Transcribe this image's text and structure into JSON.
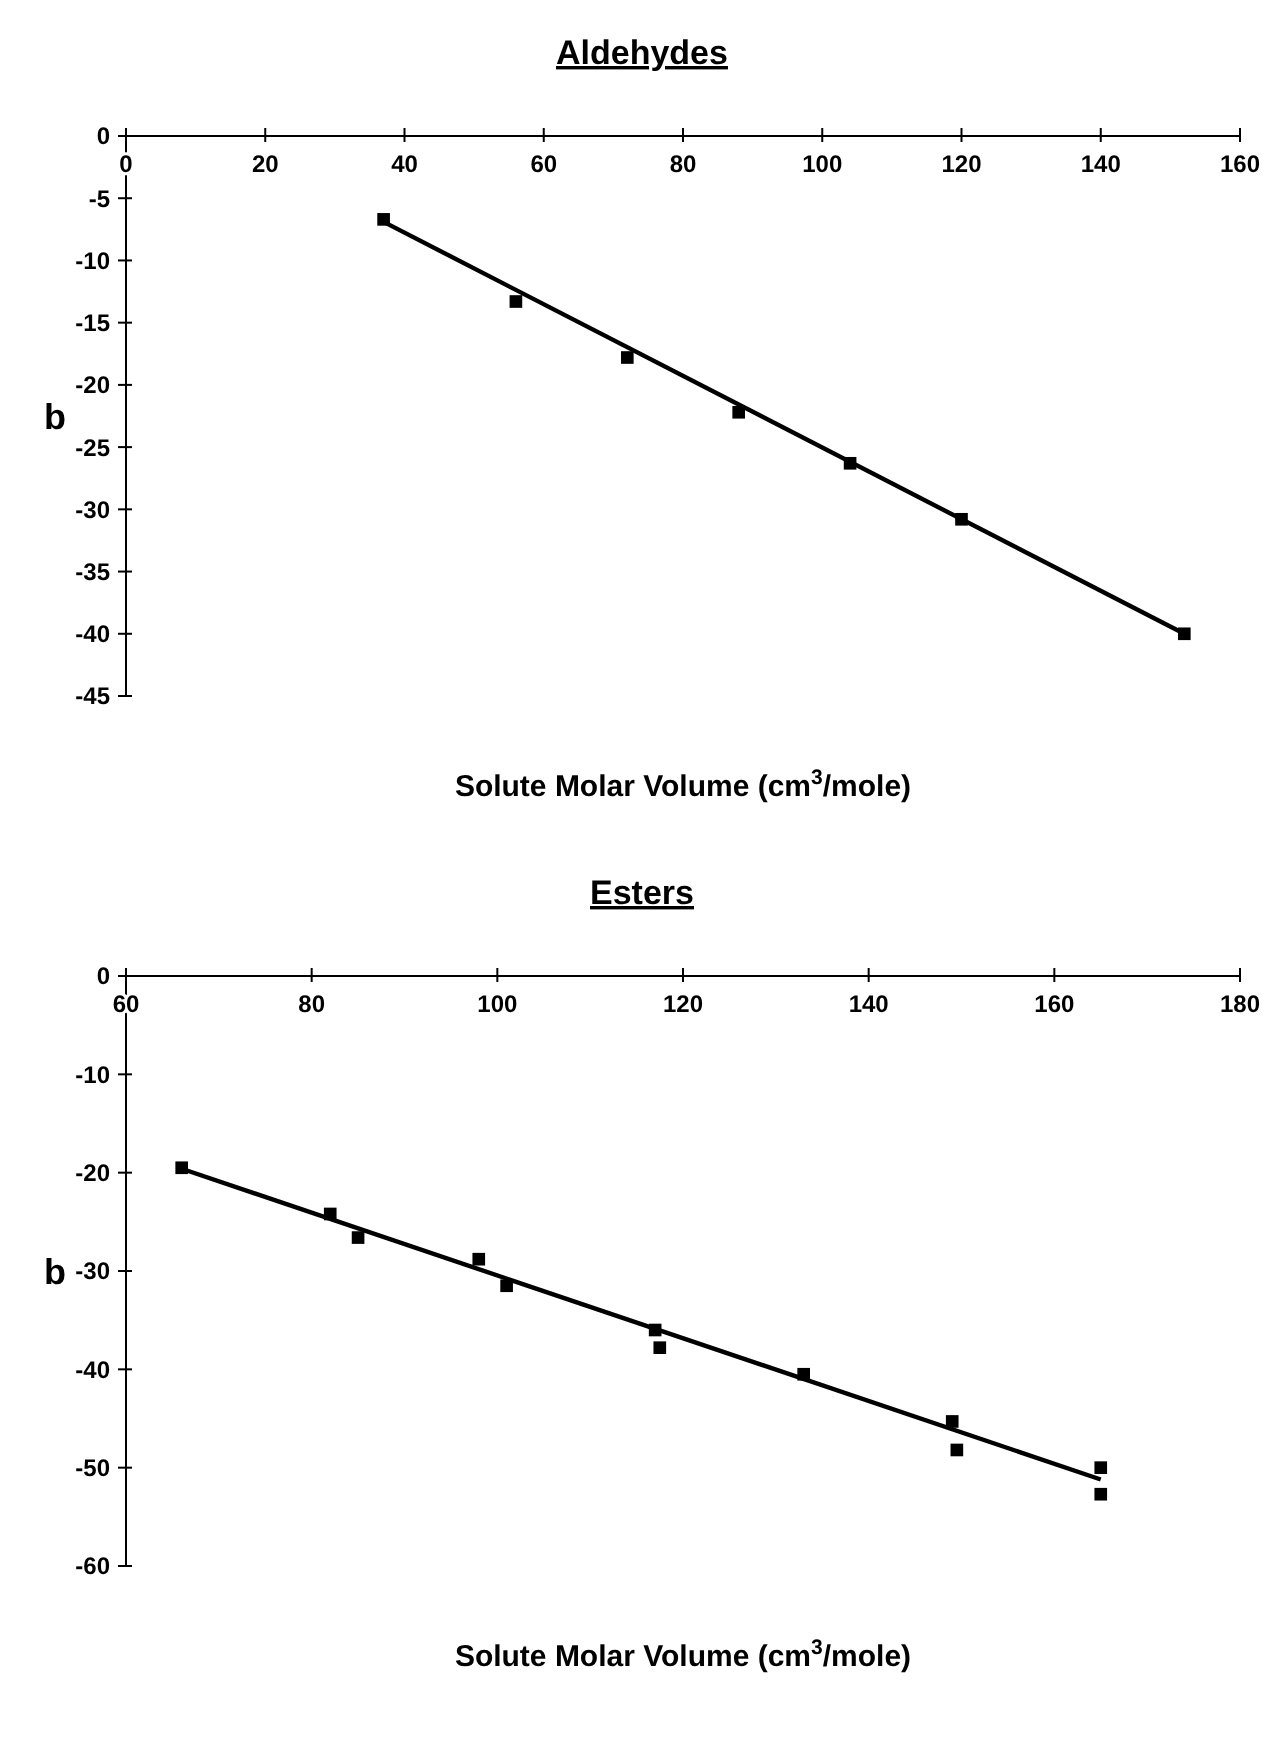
{
  "chart_data": [
    {
      "type": "scatter",
      "title": "Aldehydes",
      "xlabel": "Solute Molar Volume (cm$^{3}$/mole)",
      "ylabel": "b",
      "xlim": [
        0,
        160
      ],
      "xticks": [
        0,
        20,
        40,
        60,
        80,
        100,
        120,
        140,
        160
      ],
      "ylim": [
        -45,
        0
      ],
      "yticks": [
        0,
        -5,
        -10,
        -15,
        -20,
        -25,
        -30,
        -35,
        -40,
        -45
      ],
      "series": [
        {
          "marker": "square",
          "color": "#000000",
          "x": [
            37,
            56,
            72,
            88,
            104,
            120,
            152
          ],
          "values": [
            -6.7,
            -13.3,
            -17.8,
            -22.2,
            -26.3,
            -30.8,
            -40
          ]
        },
        {
          "type": "line",
          "color": "#000000",
          "x": [
            37,
            152
          ],
          "values": [
            -6.9,
            -40
          ]
        }
      ]
    },
    {
      "type": "scatter",
      "title": "Esters",
      "xlabel": "Solute Molar Volume (cm$^{3}$/mole)",
      "ylabel": "b",
      "xlim": [
        60,
        180
      ],
      "xticks": [
        60,
        80,
        100,
        120,
        140,
        160,
        180
      ],
      "ylim": [
        -60,
        0
      ],
      "yticks": [
        0,
        -10,
        -20,
        -30,
        -40,
        -50,
        -60
      ],
      "series": [
        {
          "marker": "square",
          "color": "#000000",
          "x": [
            66,
            82,
            85,
            98,
            101,
            117,
            117.5,
            133,
            149,
            149.5,
            165,
            165
          ],
          "values": [
            -19.5,
            -24.2,
            -26.6,
            -28.8,
            -31.5,
            -36,
            -37.8,
            -40.5,
            -45.3,
            -48.2,
            -50,
            -52.7
          ]
        },
        {
          "type": "line",
          "color": "#000000",
          "x": [
            66,
            165
          ],
          "values": [
            -19.6,
            -51.2
          ]
        }
      ]
    }
  ]
}
